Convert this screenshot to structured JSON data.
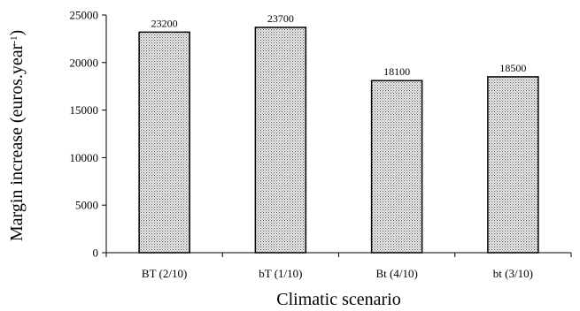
{
  "chart_data": {
    "type": "bar",
    "categories": [
      "BT (2/10)",
      "bT (1/10)",
      "Bt (4/10)",
      "bt (3/10)"
    ],
    "values": [
      23200,
      23700,
      18100,
      18500
    ],
    "data_labels": [
      "23200",
      "23700",
      "18100",
      "18500"
    ],
    "title": "",
    "xlabel": "Climatic scenario",
    "ylabel": "Margin increase (euros.year",
    "ylabel_superscript": "-1",
    "ylabel_close": ")",
    "ylim": [
      0,
      25000
    ],
    "yticks": [
      0,
      5000,
      10000,
      15000,
      20000,
      25000
    ],
    "ytick_labels": [
      "0",
      "5000",
      "10000",
      "15000",
      "20000",
      "25000"
    ],
    "grid": false,
    "legend": "none",
    "bar_fill": "dotted-light-gray",
    "colors": {
      "bar_edge": "#000000",
      "bar_dots": "#555555",
      "axis": "#000000"
    }
  }
}
